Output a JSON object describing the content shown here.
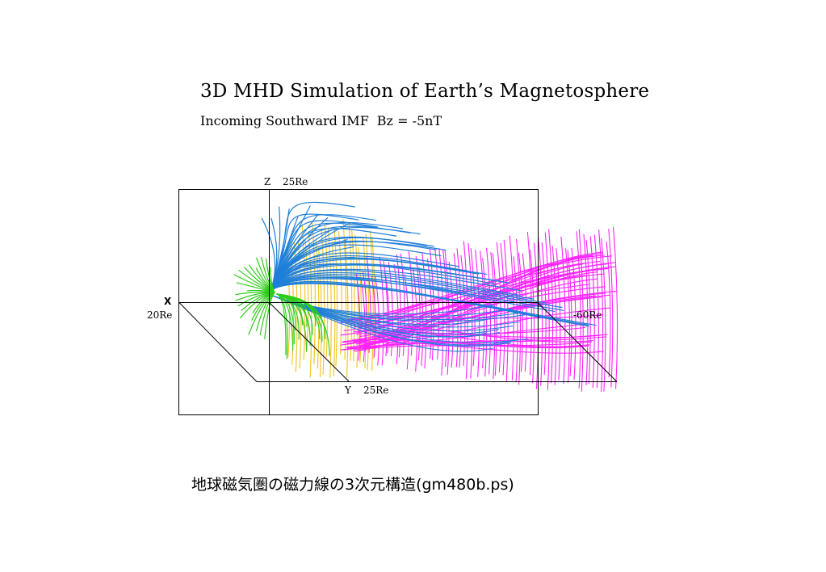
{
  "header": {
    "title": "3D MHD Simulation of Earth’s Magnetosphere",
    "subtitle_left": "Incoming Southward IMF",
    "subtitle_right": "Bz = -5nT"
  },
  "axes": {
    "z_label": "Z",
    "z_extent": "25Re",
    "x_label": "X",
    "x_extent_front": "20Re",
    "x_extent_back": "-60Re",
    "y_label": "Y",
    "y_extent": "25Re"
  },
  "colors": {
    "open_field": "#1f7fd8",
    "closed_field": "#2ecc1a",
    "tail_field": "#ff22ff",
    "imf_field": "#f2c82a",
    "frame": "#000000"
  },
  "caption": "地球磁気圏の磁力線の3次元構造(gm480b.ps)"
}
